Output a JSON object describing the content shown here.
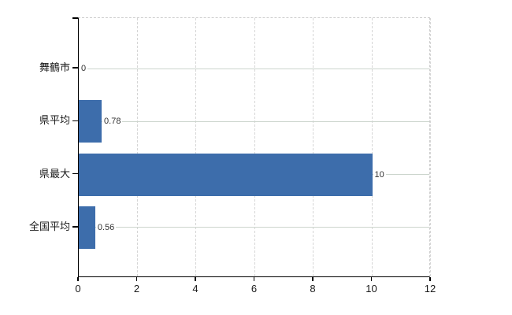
{
  "chart_data": {
    "type": "bar",
    "orientation": "horizontal",
    "title": "",
    "xlabel": "",
    "ylabel": "",
    "categories": [
      "舞鶴市",
      "県平均",
      "県最大",
      "全国平均"
    ],
    "values": [
      0,
      0.78,
      10,
      0.56
    ],
    "value_labels": [
      "0",
      "0.78",
      "10",
      "0.56"
    ],
    "xlim": [
      0,
      12
    ],
    "xticks": [
      0,
      2,
      4,
      6,
      8,
      10,
      12
    ],
    "grid": "vertical-dashed",
    "legend": "none",
    "colors": {
      "bar": "#3d6dab",
      "vertical_gridline": "#d6d6d6",
      "category_line": "#ccd5cd",
      "axis": "#000000",
      "plot_border_dashed": "#cccccc",
      "value_label_text": "#333333",
      "tick_label_text": "#1a1a1a",
      "background": "#ffffff"
    }
  }
}
